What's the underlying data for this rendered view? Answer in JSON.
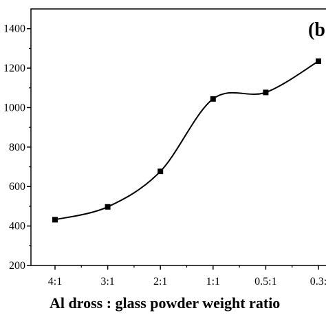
{
  "chart_data": {
    "type": "line",
    "panel_label": "(b",
    "categories": [
      "4:1",
      "3:1",
      "2:1",
      "1:1",
      "0.5:1",
      "0.3:"
    ],
    "values": [
      432,
      497,
      677,
      1044,
      1077,
      1235
    ],
    "xlabel": "Al dross : glass powder weight ratio",
    "ylabel": "",
    "ylim": [
      200,
      1500
    ],
    "yticks": [
      "200",
      "400",
      "600",
      "800",
      "1000",
      "1200",
      "1400"
    ],
    "marker": "square",
    "line_color": "#000000",
    "smooth": true,
    "grid": false
  }
}
